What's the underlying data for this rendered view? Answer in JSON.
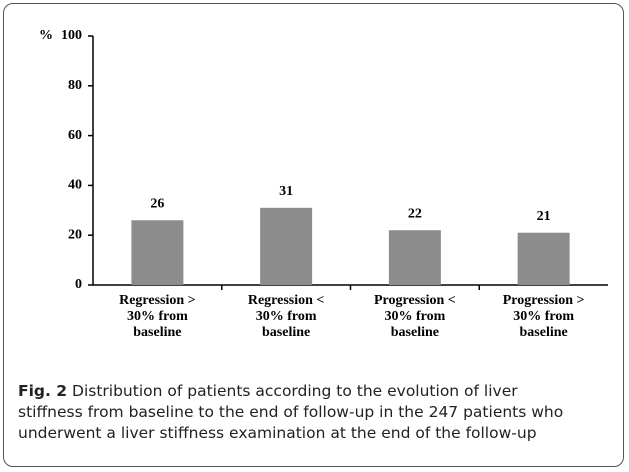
{
  "chart_data": {
    "type": "bar",
    "y_label": "%",
    "categories": [
      "Regression > 30% from baseline",
      "Regression < 30% from baseline",
      "Progression < 30% from baseline",
      "Progression > 30% from baseline"
    ],
    "values": [
      26,
      31,
      22,
      21
    ],
    "color": "#8c8c8c",
    "ylim": [
      0,
      100
    ],
    "yticks": [
      0,
      20,
      40,
      60,
      80,
      100
    ],
    "grid": false
  },
  "caption": {
    "label": "Fig. 2",
    "text": "Distribution of patients according to the evolution of liver stiffness from baseline to the end of follow-up in the 247 patients who underwent a liver stiffness examination at the end of the follow-up"
  }
}
